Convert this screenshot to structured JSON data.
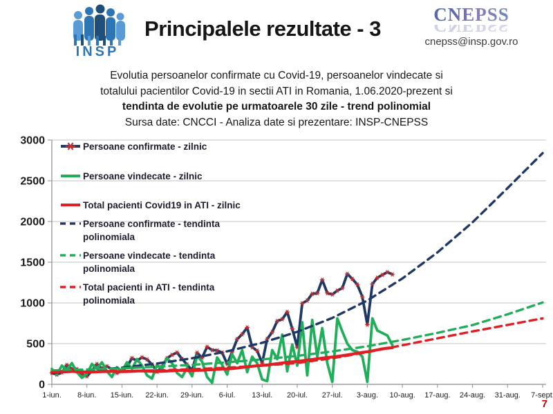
{
  "header": {
    "insp_logo_text": "INSP",
    "title": "Principalele rezultate - 3",
    "cnepss_logo_text": "CNEPSS",
    "email": "cnepss@insp.gov.ro"
  },
  "subtitle": {
    "line1": "Evolutia persoanelor confirmate cu Covid-19, persoanelor vindecate si",
    "line2": "totalului pacientilor Covid-19 in sectii ATI in Romania, 1.06.2020-prezent si",
    "line3": "tendinta de evolutie pe urmatoarele 30 zile - trend polinomial",
    "line4": "Sursa date: CNCCI  -  Analiza date si prezentare: INSP-CNEPSS"
  },
  "page_number": "7",
  "colors": {
    "navy": "#1F3864",
    "green": "#21AD5A",
    "red": "#E01F25",
    "marker_red": "#C03030",
    "grid": "#C3C3C3",
    "axis": "#8C8C8C",
    "text": "#1A1A1A",
    "page_red": "#C00000",
    "logo_blue": "#2E75B6",
    "logo_dark": "#1F4E79",
    "logo_light": "#5B9BD5"
  },
  "chart_data": {
    "type": "line",
    "legend_position": "inside-top-left",
    "grid": "horizontal",
    "y_axis": {
      "min": 0,
      "max": 3000,
      "step": 500
    },
    "x_axis": {
      "total_days": 98,
      "tick_days": [
        0,
        7,
        14,
        21,
        28,
        35,
        42,
        49,
        56,
        63,
        70,
        77,
        84,
        91,
        98
      ],
      "tick_labels": [
        "1-iun.",
        "8-iun.",
        "15-iun.",
        "22-iun.",
        "29-iun.",
        "6-iul.",
        "13-iul.",
        "20-iul.",
        "27-iul.",
        "3-aug.",
        "10-aug.",
        "17-aug.",
        "24-aug.",
        "31-aug.",
        "7-sept."
      ]
    },
    "series": [
      {
        "name": "Persoane confirmate - zilnic",
        "color": "#1F3864",
        "style": "solid",
        "width": 3.8,
        "marker": "asterisk",
        "marker_color": "#C03030",
        "values": [
          141,
          119,
          146,
          238,
          191,
          187,
          125,
          99,
          166,
          249,
          197,
          222,
          183,
          139,
          166,
          216,
          321,
          290,
          331,
          306,
          244,
          155,
          214,
          321,
          362,
          391,
          311,
          242,
          171,
          388,
          326,
          460,
          420,
          416,
          391,
          250,
          397,
          555,
          614,
          698,
          456,
          413,
          261,
          557,
          641,
          777,
          799,
          889,
          681,
          456,
          994,
          1030,
          1112,
          1119,
          1284,
          1120,
          1104,
          1151,
          1182,
          1356,
          1295,
          1225,
          1075,
          733,
          1232,
          1309,
          1345,
          1378,
          1350
        ]
      },
      {
        "name": "Persoane vindecate - zilnic",
        "color": "#21AD5A",
        "style": "solid",
        "width": 3.8,
        "marker": "none",
        "values": [
          190,
          120,
          230,
          180,
          260,
          150,
          80,
          130,
          250,
          190,
          270,
          160,
          90,
          210,
          160,
          270,
          190,
          310,
          230,
          110,
          70,
          240,
          190,
          320,
          260,
          140,
          90,
          200,
          100,
          350,
          280,
          90,
          20,
          330,
          240,
          120,
          370,
          260,
          420,
          150,
          340,
          260,
          60,
          40,
          420,
          310,
          610,
          160,
          490,
          230,
          760,
          110,
          790,
          340,
          690,
          260,
          30,
          810,
          650,
          500,
          420,
          400,
          340,
          30,
          810,
          660,
          630,
          600,
          480
        ]
      },
      {
        "name": "Total pacienti Covid19 in ATI - zilnic",
        "color": "#E01F25",
        "style": "solid",
        "width": 4.2,
        "marker": "none",
        "values": [
          153,
          155,
          158,
          160,
          158,
          156,
          153,
          149,
          151,
          153,
          156,
          158,
          160,
          158,
          155,
          157,
          160,
          163,
          165,
          163,
          160,
          158,
          160,
          163,
          166,
          170,
          172,
          170,
          168,
          171,
          173,
          176,
          180,
          184,
          188,
          190,
          194,
          200,
          208,
          216,
          222,
          228,
          232,
          238,
          246,
          254,
          262,
          270,
          276,
          282,
          290,
          298,
          306,
          314,
          322,
          330,
          336,
          344,
          352,
          362,
          372,
          382,
          392,
          400,
          412,
          424,
          436,
          444,
          450
        ]
      },
      {
        "name": "Persoane confirmate - tendinta polinomiala",
        "color": "#1F3864",
        "style": "dashed",
        "width": 3.4,
        "marker": "none",
        "x_days": [
          0,
          7,
          14,
          21,
          28,
          35,
          42,
          49,
          56,
          63,
          70,
          77,
          84,
          91,
          98
        ],
        "values": [
          140,
          168,
          205,
          255,
          320,
          405,
          510,
          645,
          815,
          1030,
          1300,
          1620,
          1990,
          2410,
          2840
        ]
      },
      {
        "name": "Persoane vindecate - tendinta polinomiala",
        "color": "#21AD5A",
        "style": "dashed",
        "width": 3.4,
        "marker": "none",
        "x_days": [
          0,
          7,
          14,
          21,
          28,
          35,
          42,
          49,
          56,
          63,
          70,
          77,
          84,
          91,
          98
        ],
        "values": [
          170,
          182,
          197,
          216,
          240,
          270,
          306,
          350,
          404,
          468,
          545,
          632,
          728,
          860,
          1005
        ]
      },
      {
        "name": "Total pacienti in ATI - tendinta polinomiala",
        "color": "#E01F25",
        "style": "dashed",
        "width": 3.4,
        "marker": "none",
        "x_days": [
          0,
          7,
          14,
          21,
          28,
          35,
          42,
          49,
          56,
          63,
          70,
          77,
          84,
          91,
          98
        ],
        "values": [
          150,
          155,
          162,
          172,
          186,
          205,
          230,
          262,
          320,
          395,
          480,
          565,
          650,
          730,
          810
        ]
      }
    ]
  }
}
